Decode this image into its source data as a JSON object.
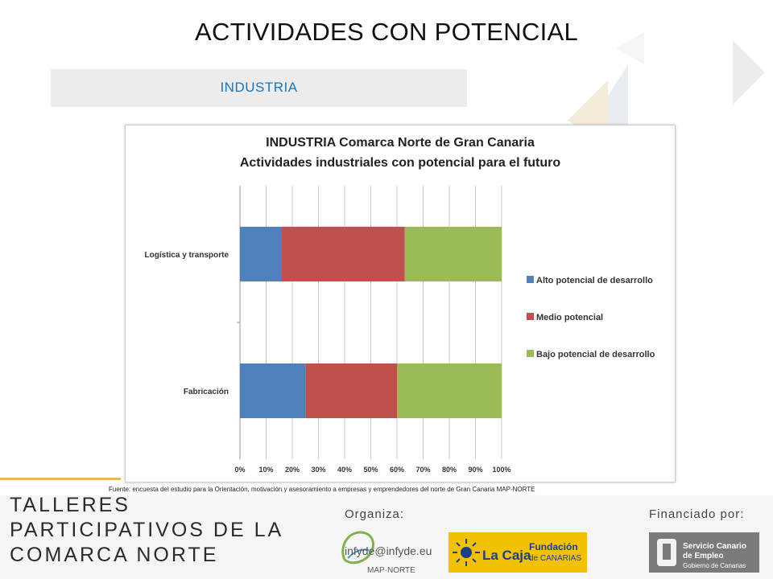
{
  "slide": {
    "title": "ACTIVIDADES CON POTENCIAL",
    "section": "INDUSTRIA",
    "source": "Fuente: encuesta del estudio para la Orientación, motivación y asesoramiento a empresas y emprendedores del norte de Gran Canaria MAP-NORTE"
  },
  "footer": {
    "talleres_lines": [
      "TALLERES",
      "PARTICIPATIVOS DE LA",
      "COMARCA NORTE"
    ],
    "organiza_label": "Organiza:",
    "financiado_label": "Financiado por:",
    "email": "infyde@infyde.eu",
    "logo_map_text": "MAP·NORTE",
    "logo_lacaja_text1": "La Caja",
    "logo_lacaja_text2": "Fundación",
    "logo_lacaja_text3": "de CANARIAS",
    "logo_sce_text1": "Servicio Canario",
    "logo_sce_text2": "de Empleo",
    "logo_sce_text3": "Gobierno de Canarias"
  },
  "chart_data": {
    "type": "bar",
    "orientation": "horizontal",
    "stacked": "percent",
    "title": "INDUSTRIA Comarca Norte de Gran Canaria",
    "subtitle": "Actividades industriales con potencial para el futuro",
    "categories": [
      "Logística y transporte",
      "Fabricación"
    ],
    "series": [
      {
        "name": "Alto potencial de desarrollo",
        "values": [
          16,
          25
        ],
        "color": "#4f81bd"
      },
      {
        "name": "Medio potencial",
        "values": [
          47,
          35
        ],
        "color": "#c0504d"
      },
      {
        "name": "Bajo potencial de desarrollo",
        "values": [
          37,
          40
        ],
        "color": "#9bbb59"
      }
    ],
    "xlim": [
      0,
      100
    ],
    "xticks": [
      "0%",
      "10%",
      "20%",
      "30%",
      "40%",
      "50%",
      "60%",
      "70%",
      "80%",
      "90%",
      "100%"
    ],
    "grid": "vertical",
    "legend": "right"
  }
}
